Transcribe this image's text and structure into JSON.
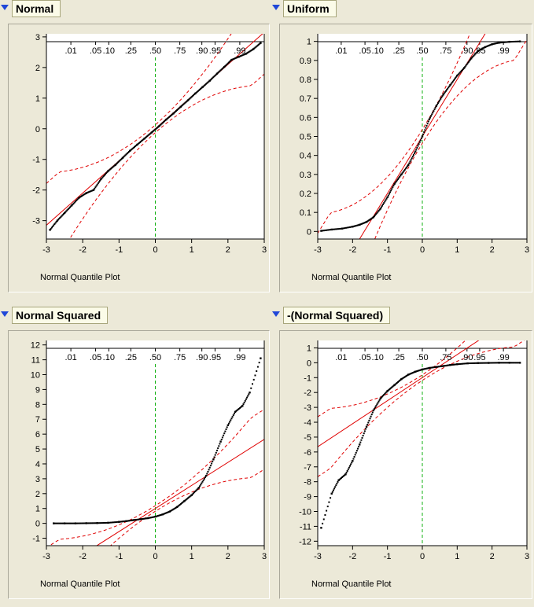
{
  "x_axis_label": "Normal Quantile Plot",
  "prob_ticks": [
    ".01",
    ".05",
    ".10",
    ".25",
    ".50",
    ".75",
    ".90",
    ".95",
    ".99"
  ],
  "chart_data": [
    {
      "type": "scatter",
      "title": "Normal",
      "xlabel": "Normal Quantile Plot",
      "xlim": [
        -3,
        3
      ],
      "ylim": [
        -3.6,
        3.1
      ],
      "x_ticks": [
        -3,
        -2,
        -1,
        0,
        1,
        2,
        3
      ],
      "y_ticks": [
        -3,
        -2,
        -1,
        0,
        1,
        2,
        3
      ],
      "top_axis_labels": [
        ".01",
        ".05",
        ".10",
        ".25",
        ".50",
        ".75",
        ".90",
        ".95",
        ".99"
      ],
      "reference_line": {
        "intercept": 0.0,
        "slope": 1.05
      },
      "points": [
        [
          -2.9,
          -3.3
        ],
        [
          -2.7,
          -3.0
        ],
        [
          -2.5,
          -2.75
        ],
        [
          -2.3,
          -2.5
        ],
        [
          -2.1,
          -2.25
        ],
        [
          -1.9,
          -2.1
        ],
        [
          -1.7,
          -2.0
        ],
        [
          -1.5,
          -1.65
        ],
        [
          -1.3,
          -1.38
        ],
        [
          -1.1,
          -1.18
        ],
        [
          -0.9,
          -0.95
        ],
        [
          -0.7,
          -0.72
        ],
        [
          -0.5,
          -0.52
        ],
        [
          -0.3,
          -0.32
        ],
        [
          -0.1,
          -0.12
        ],
        [
          0.1,
          0.08
        ],
        [
          0.3,
          0.3
        ],
        [
          0.5,
          0.5
        ],
        [
          0.7,
          0.72
        ],
        [
          0.9,
          0.93
        ],
        [
          1.1,
          1.15
        ],
        [
          1.3,
          1.36
        ],
        [
          1.5,
          1.57
        ],
        [
          1.7,
          1.8
        ],
        [
          1.9,
          2.02
        ],
        [
          2.1,
          2.25
        ],
        [
          2.3,
          2.35
        ],
        [
          2.5,
          2.45
        ],
        [
          2.7,
          2.6
        ],
        [
          2.9,
          2.8
        ]
      ]
    },
    {
      "type": "scatter",
      "title": "Uniform",
      "xlabel": "Normal Quantile Plot",
      "xlim": [
        -3,
        3
      ],
      "ylim": [
        -0.04,
        1.04
      ],
      "x_ticks": [
        -3,
        -2,
        -1,
        0,
        1,
        2,
        3
      ],
      "y_ticks": [
        0,
        0.1,
        0.2,
        0.3,
        0.4,
        0.5,
        0.6,
        0.7,
        0.8,
        0.9,
        1
      ],
      "top_axis_labels": [
        ".01",
        ".05",
        ".10",
        ".25",
        ".50",
        ".75",
        ".90",
        ".95",
        ".99"
      ],
      "reference_line": {
        "intercept": 0.5,
        "slope": 0.3
      },
      "points": [
        [
          -2.9,
          0.003
        ],
        [
          -2.6,
          0.01
        ],
        [
          -2.3,
          0.015
        ],
        [
          -2.0,
          0.025
        ],
        [
          -1.8,
          0.035
        ],
        [
          -1.6,
          0.05
        ],
        [
          -1.4,
          0.075
        ],
        [
          -1.2,
          0.12
        ],
        [
          -1.0,
          0.18
        ],
        [
          -0.8,
          0.25
        ],
        [
          -0.6,
          0.3
        ],
        [
          -0.4,
          0.35
        ],
        [
          -0.2,
          0.42
        ],
        [
          0.0,
          0.5
        ],
        [
          0.2,
          0.59
        ],
        [
          0.4,
          0.66
        ],
        [
          0.6,
          0.72
        ],
        [
          0.8,
          0.77
        ],
        [
          1.0,
          0.82
        ],
        [
          1.2,
          0.86
        ],
        [
          1.4,
          0.91
        ],
        [
          1.6,
          0.95
        ],
        [
          1.8,
          0.97
        ],
        [
          2.0,
          0.985
        ],
        [
          2.2,
          0.993
        ],
        [
          2.5,
          0.998
        ],
        [
          2.8,
          1.0
        ]
      ]
    },
    {
      "type": "scatter",
      "title": "Normal Squared",
      "xlabel": "Normal Quantile Plot",
      "xlim": [
        -3,
        3
      ],
      "ylim": [
        -1.5,
        12.3
      ],
      "x_ticks": [
        -3,
        -2,
        -1,
        0,
        1,
        2,
        3
      ],
      "y_ticks": [
        -1,
        0,
        1,
        2,
        3,
        4,
        5,
        6,
        7,
        8,
        9,
        10,
        11,
        12
      ],
      "top_axis_labels": [
        ".01",
        ".05",
        ".10",
        ".25",
        ".50",
        ".75",
        ".90",
        ".95",
        ".99"
      ],
      "reference_line": {
        "intercept": 1.0,
        "slope": 1.55
      },
      "points": [
        [
          -2.8,
          0.0
        ],
        [
          -2.5,
          0.0
        ],
        [
          -2.2,
          0.0
        ],
        [
          -1.9,
          0.01
        ],
        [
          -1.6,
          0.02
        ],
        [
          -1.3,
          0.04
        ],
        [
          -1.0,
          0.1
        ],
        [
          -0.8,
          0.15
        ],
        [
          -0.6,
          0.22
        ],
        [
          -0.4,
          0.28
        ],
        [
          -0.2,
          0.35
        ],
        [
          0.0,
          0.45
        ],
        [
          0.2,
          0.6
        ],
        [
          0.4,
          0.8
        ],
        [
          0.6,
          1.1
        ],
        [
          0.8,
          1.5
        ],
        [
          1.0,
          1.9
        ],
        [
          1.2,
          2.4
        ],
        [
          1.4,
          3.2
        ],
        [
          1.6,
          4.3
        ],
        [
          1.8,
          5.5
        ],
        [
          2.0,
          6.6
        ],
        [
          2.2,
          7.5
        ],
        [
          2.4,
          7.9
        ],
        [
          2.6,
          8.8
        ],
        [
          2.9,
          11.1
        ]
      ]
    },
    {
      "type": "scatter",
      "title": "-(Normal Squared)",
      "xlabel": "Normal Quantile Plot",
      "xlim": [
        -3,
        3
      ],
      "ylim": [
        -12.3,
        1.5
      ],
      "x_ticks": [
        -3,
        -2,
        -1,
        0,
        1,
        2,
        3
      ],
      "y_ticks": [
        1,
        0,
        -1,
        -2,
        -3,
        -4,
        -5,
        -6,
        -7,
        -8,
        -9,
        -10,
        -11,
        -12
      ],
      "top_axis_labels": [
        ".01",
        ".05",
        ".10",
        ".25",
        ".50",
        ".75",
        ".90",
        ".95",
        ".99"
      ],
      "reference_line": {
        "intercept": -1.0,
        "slope": 1.55
      },
      "points": [
        [
          -2.9,
          -11.1
        ],
        [
          -2.6,
          -8.8
        ],
        [
          -2.4,
          -7.9
        ],
        [
          -2.2,
          -7.5
        ],
        [
          -2.0,
          -6.6
        ],
        [
          -1.8,
          -5.5
        ],
        [
          -1.6,
          -4.3
        ],
        [
          -1.4,
          -3.2
        ],
        [
          -1.2,
          -2.4
        ],
        [
          -1.0,
          -1.9
        ],
        [
          -0.8,
          -1.5
        ],
        [
          -0.6,
          -1.1
        ],
        [
          -0.4,
          -0.8
        ],
        [
          -0.2,
          -0.6
        ],
        [
          0.0,
          -0.45
        ],
        [
          0.2,
          -0.35
        ],
        [
          0.4,
          -0.28
        ],
        [
          0.6,
          -0.22
        ],
        [
          0.8,
          -0.15
        ],
        [
          1.0,
          -0.1
        ],
        [
          1.3,
          -0.04
        ],
        [
          1.6,
          -0.02
        ],
        [
          1.9,
          -0.01
        ],
        [
          2.2,
          0.0
        ],
        [
          2.5,
          0.0
        ],
        [
          2.8,
          0.0
        ]
      ]
    }
  ]
}
